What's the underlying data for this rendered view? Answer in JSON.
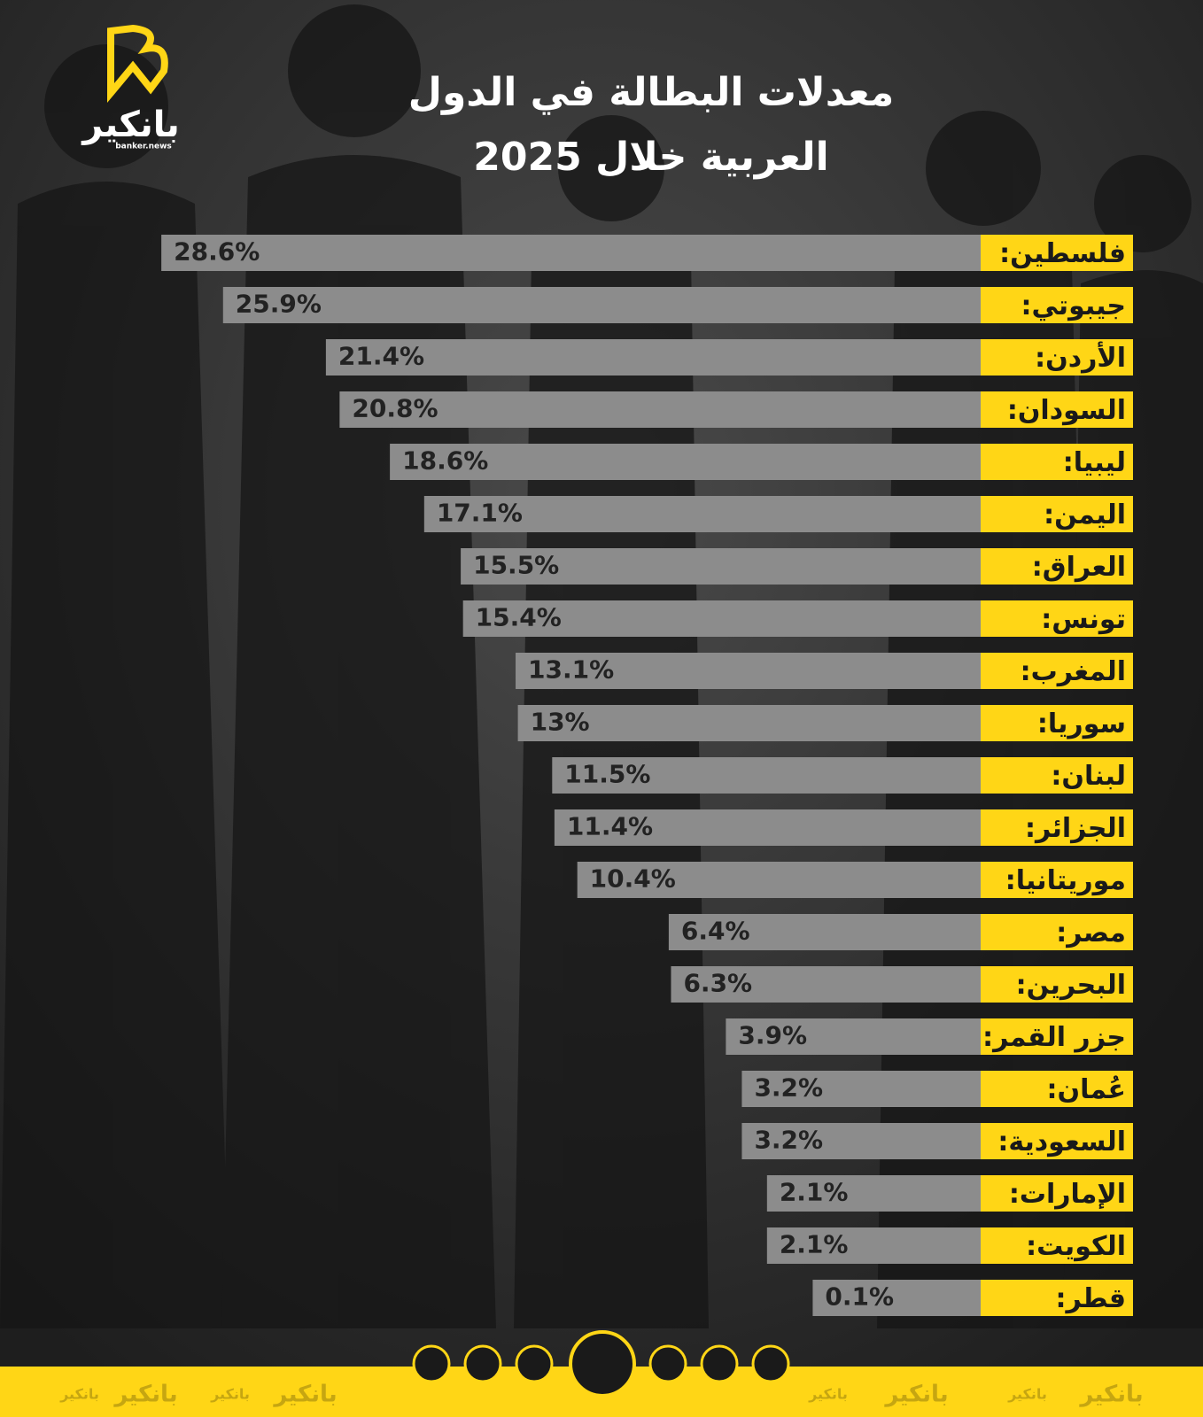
{
  "brand": {
    "name": "بانكير",
    "site": "banker.news"
  },
  "chart_data": {
    "type": "bar",
    "orientation": "horizontal",
    "title": [
      "معدلات البطالة في الدول",
      "العربية خلال 2025"
    ],
    "categories": [
      "فلسطين:",
      "جيبوتي:",
      "الأردن:",
      "السودان:",
      "ليبيا:",
      "اليمن:",
      "العراق:",
      "تونس:",
      "المغرب:",
      "سوريا:",
      "لبنان:",
      "الجزائر:",
      "موريتانيا:",
      "مصر:",
      "البحرين:",
      "جزر القمر:",
      "عُمان:",
      "السعودية:",
      "الإمارات:",
      "الكويت:",
      "قطر:"
    ],
    "values": [
      28.6,
      25.9,
      21.4,
      20.8,
      18.6,
      17.1,
      15.5,
      15.4,
      13.1,
      13,
      11.5,
      11.4,
      10.4,
      6.4,
      6.3,
      3.9,
      3.2,
      3.2,
      2.1,
      2.1,
      0.1
    ],
    "value_labels": [
      "28.6%",
      "25.9%",
      "21.4%",
      "20.8%",
      "18.6%",
      "17.1%",
      "15.5%",
      "15.4%",
      "13.1%",
      "13%",
      "11.5%",
      "11.4%",
      "10.4%",
      "6.4%",
      "6.3%",
      "3.9%",
      "3.2%",
      "3.2%",
      "2.1%",
      "2.1%",
      "0.1%"
    ],
    "color": "#8c8c8c",
    "label_color": "#ffd616"
  }
}
